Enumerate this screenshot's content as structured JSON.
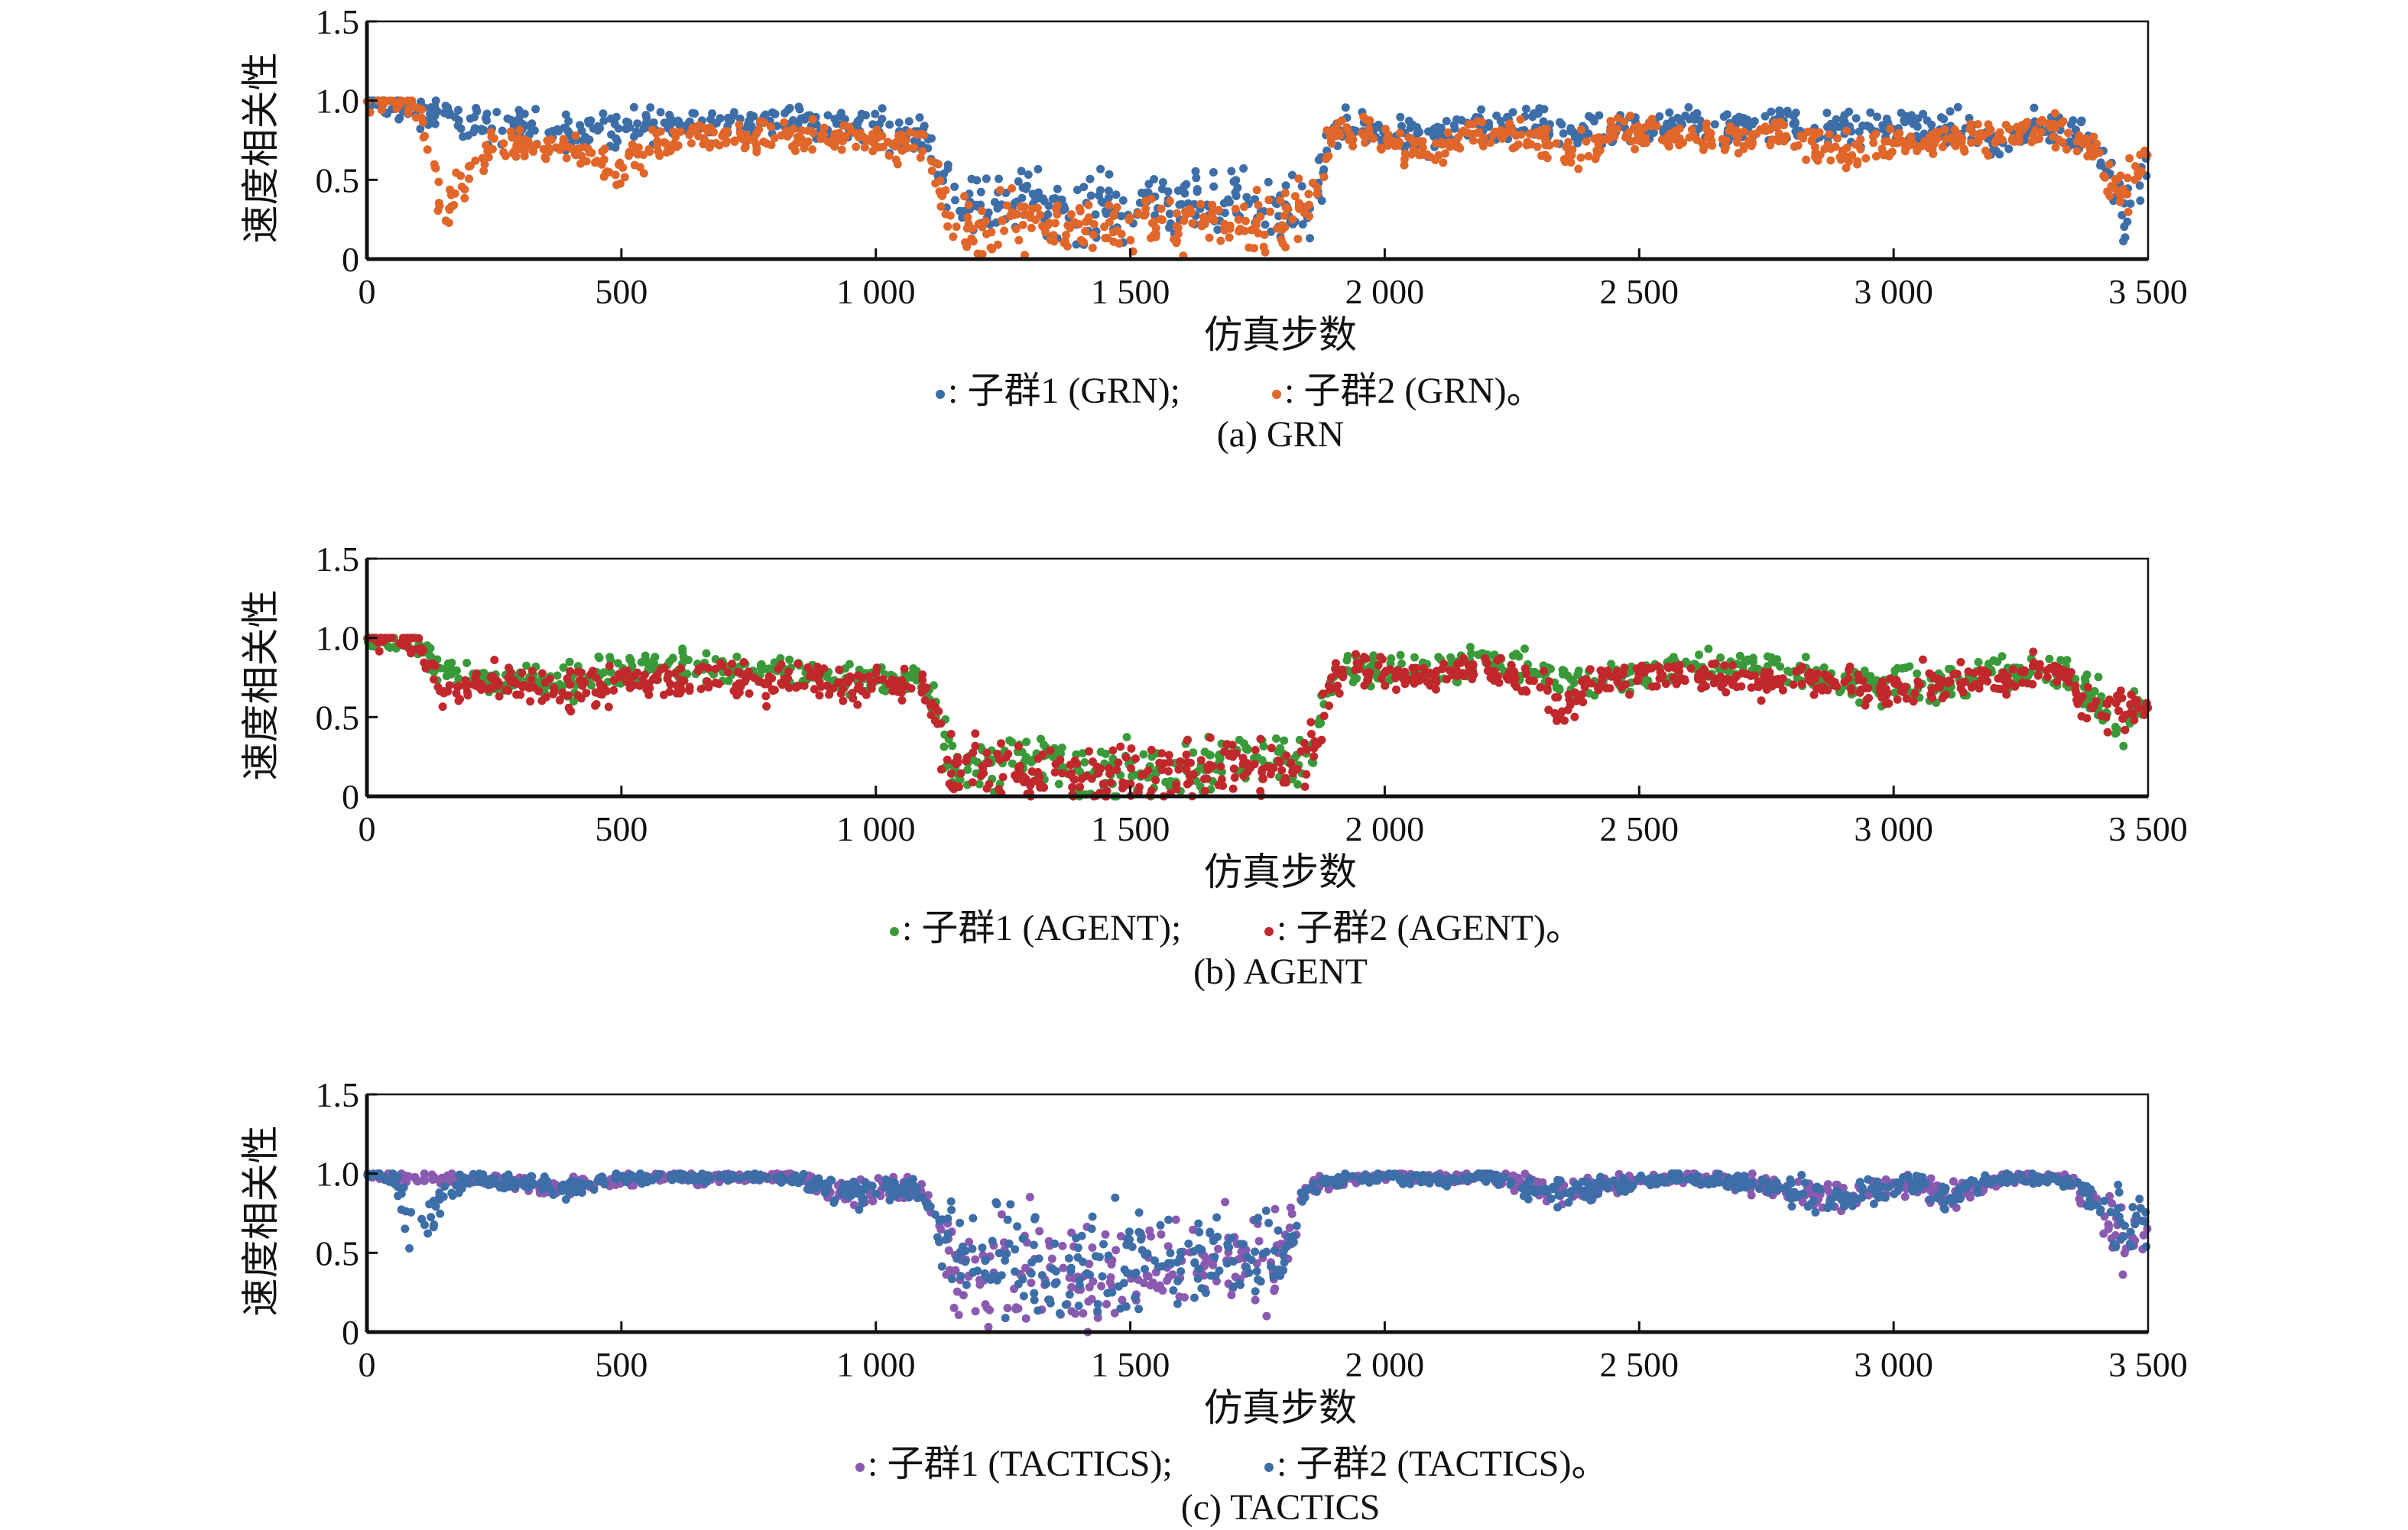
{
  "chart_data": [
    {
      "type": "scatter",
      "id": "grn",
      "caption": "(a) GRN",
      "xlabel": "仿真步数",
      "ylabel": "速度相关性",
      "xlim": [
        0,
        3500
      ],
      "ylim": [
        0,
        1.5
      ],
      "x_ticks": [
        0,
        500,
        1000,
        1500,
        2000,
        2500,
        3000,
        3500
      ],
      "x_tick_labels": [
        "0",
        "500",
        "1 000",
        "1 500",
        "2 000",
        "2 500",
        "3 000",
        "3 500"
      ],
      "y_ticks": [
        0,
        0.5,
        1.0,
        1.5
      ],
      "y_tick_labels": [
        "0",
        "0.5",
        "1.0",
        "1.5"
      ],
      "grid": false,
      "legend_placement": "bottom-center",
      "x_step": 50,
      "series": [
        {
          "name": "子群1 (GRN);",
          "legend_prefix": ": ",
          "color": "#3d6ea8",
          "spread": [
            0.07,
            0.15
          ],
          "values": [
            1.0,
            0.95,
            0.93,
            0.9,
            0.85,
            0.83,
            0.85,
            0.82,
            0.8,
            0.82,
            0.8,
            0.85,
            0.85,
            0.85,
            0.87,
            0.86,
            0.87,
            0.86,
            0.85,
            0.85,
            0.83,
            0.8,
            0.78,
            0.45,
            0.3,
            0.35,
            0.4,
            0.35,
            0.3,
            0.35,
            0.3,
            0.4,
            0.35,
            0.3,
            0.4,
            0.35,
            0.35,
            0.25,
            0.8,
            0.82,
            0.8,
            0.78,
            0.75,
            0.8,
            0.82,
            0.85,
            0.83,
            0.8,
            0.8,
            0.78,
            0.82,
            0.85,
            0.85,
            0.82,
            0.83,
            0.85,
            0.85,
            0.82,
            0.8,
            0.83,
            0.85,
            0.85,
            0.8,
            0.82,
            0.7,
            0.8,
            0.82,
            0.8,
            0.75,
            0.3,
            0.6
          ]
        },
        {
          "name": "子群2 (GRN)。",
          "legend_prefix": ": ",
          "color": "#e0662a",
          "spread": [
            0.06,
            0.12
          ],
          "values": [
            1.0,
            1.0,
            0.95,
            0.3,
            0.55,
            0.72,
            0.75,
            0.7,
            0.72,
            0.65,
            0.55,
            0.68,
            0.75,
            0.78,
            0.75,
            0.77,
            0.78,
            0.76,
            0.78,
            0.77,
            0.75,
            0.72,
            0.72,
            0.2,
            0.15,
            0.25,
            0.25,
            0.2,
            0.22,
            0.25,
            0.2,
            0.25,
            0.22,
            0.2,
            0.2,
            0.22,
            0.25,
            0.35,
            0.8,
            0.8,
            0.72,
            0.68,
            0.7,
            0.78,
            0.8,
            0.78,
            0.75,
            0.7,
            0.72,
            0.8,
            0.8,
            0.78,
            0.8,
            0.78,
            0.75,
            0.8,
            0.78,
            0.72,
            0.7,
            0.65,
            0.75,
            0.72,
            0.75,
            0.72,
            0.78,
            0.8,
            0.8,
            0.78,
            0.65,
            0.4,
            0.7
          ]
        }
      ]
    },
    {
      "type": "scatter",
      "id": "agent",
      "caption": "(b) AGENT",
      "xlabel": "仿真步数",
      "ylabel": "速度相关性",
      "xlim": [
        0,
        3500
      ],
      "ylim": [
        0,
        1.5
      ],
      "x_ticks": [
        0,
        500,
        1000,
        1500,
        2000,
        2500,
        3000,
        3500
      ],
      "x_tick_labels": [
        "0",
        "500",
        "1 000",
        "1 500",
        "2 000",
        "2 500",
        "3 000",
        "3 500"
      ],
      "y_ticks": [
        0,
        0.5,
        1.0,
        1.5
      ],
      "y_tick_labels": [
        "0",
        "0.5",
        "1.0",
        "1.5"
      ],
      "grid": false,
      "legend_placement": "bottom-center",
      "x_step": 50,
      "series": [
        {
          "name": "子群1 (AGENT);",
          "legend_prefix": ": ",
          "color": "#3a9a3a",
          "spread": [
            0.06,
            0.12
          ],
          "values": [
            1.0,
            0.98,
            0.95,
            0.78,
            0.75,
            0.72,
            0.75,
            0.73,
            0.72,
            0.78,
            0.8,
            0.82,
            0.85,
            0.8,
            0.8,
            0.78,
            0.8,
            0.78,
            0.76,
            0.75,
            0.72,
            0.75,
            0.72,
            0.2,
            0.2,
            0.25,
            0.22,
            0.2,
            0.15,
            0.12,
            0.15,
            0.15,
            0.18,
            0.2,
            0.22,
            0.2,
            0.25,
            0.2,
            0.8,
            0.82,
            0.8,
            0.78,
            0.8,
            0.82,
            0.85,
            0.82,
            0.8,
            0.72,
            0.7,
            0.75,
            0.78,
            0.8,
            0.82,
            0.8,
            0.8,
            0.82,
            0.78,
            0.75,
            0.72,
            0.7,
            0.72,
            0.7,
            0.72,
            0.75,
            0.8,
            0.78,
            0.8,
            0.75,
            0.6,
            0.4,
            0.62
          ]
        },
        {
          "name": "子群2 (AGENT)。",
          "legend_prefix": ": ",
          "color": "#c0282c",
          "spread": [
            0.06,
            0.12
          ],
          "values": [
            1.0,
            1.0,
            0.98,
            0.65,
            0.7,
            0.72,
            0.72,
            0.7,
            0.68,
            0.68,
            0.72,
            0.72,
            0.72,
            0.72,
            0.75,
            0.72,
            0.72,
            0.75,
            0.72,
            0.7,
            0.7,
            0.7,
            0.7,
            0.15,
            0.15,
            0.18,
            0.15,
            0.15,
            0.12,
            0.1,
            0.12,
            0.12,
            0.15,
            0.18,
            0.2,
            0.18,
            0.2,
            0.2,
            0.75,
            0.78,
            0.75,
            0.75,
            0.78,
            0.8,
            0.82,
            0.78,
            0.72,
            0.5,
            0.72,
            0.75,
            0.78,
            0.78,
            0.78,
            0.75,
            0.72,
            0.72,
            0.75,
            0.72,
            0.72,
            0.68,
            0.68,
            0.7,
            0.72,
            0.72,
            0.75,
            0.75,
            0.78,
            0.72,
            0.5,
            0.55,
            0.65
          ]
        }
      ]
    },
    {
      "type": "scatter",
      "id": "tactics",
      "caption": "(c) TACTICS",
      "xlabel": "仿真步数",
      "ylabel": "速度相关性",
      "xlim": [
        0,
        3500
      ],
      "ylim": [
        0,
        1.5
      ],
      "x_ticks": [
        0,
        500,
        1000,
        1500,
        2000,
        2500,
        3000,
        3500
      ],
      "x_tick_labels": [
        "0",
        "500",
        "1 000",
        "1 500",
        "2 000",
        "2 500",
        "3 000",
        "3 500"
      ],
      "y_ticks": [
        0,
        0.5,
        1.0,
        1.5
      ],
      "y_tick_labels": [
        "0",
        "0.5",
        "1.0",
        "1.5"
      ],
      "grid": false,
      "legend_placement": "bottom-center",
      "x_step": 50,
      "series": [
        {
          "name": "子群1 (TACTICS);",
          "legend_prefix": ": ",
          "color": "#8a5ab0",
          "spread": [
            0.02,
            0.45
          ],
          "values": [
            1.0,
            0.97,
            0.98,
            0.97,
            0.97,
            0.96,
            0.95,
            0.92,
            0.9,
            0.95,
            0.97,
            0.97,
            0.98,
            0.97,
            0.98,
            0.98,
            0.98,
            0.97,
            0.9,
            0.88,
            0.9,
            0.9,
            0.88,
            0.45,
            0.4,
            0.45,
            0.4,
            0.4,
            0.4,
            0.35,
            0.4,
            0.4,
            0.45,
            0.45,
            0.5,
            0.45,
            0.5,
            0.9,
            0.95,
            0.97,
            0.98,
            0.97,
            0.96,
            0.97,
            0.98,
            0.95,
            0.92,
            0.88,
            0.9,
            0.92,
            0.95,
            0.97,
            0.97,
            0.96,
            0.95,
            0.92,
            0.9,
            0.88,
            0.85,
            0.9,
            0.92,
            0.93,
            0.85,
            0.9,
            0.95,
            0.97,
            0.97,
            0.95,
            0.75,
            0.6,
            0.6
          ]
        },
        {
          "name": "子群2 (TACTICS)。",
          "legend_prefix": ": ",
          "color": "#3d6ea8",
          "spread": [
            0.02,
            0.45
          ],
          "values": [
            1.0,
            0.98,
            0.6,
            0.85,
            0.97,
            0.96,
            0.95,
            0.93,
            0.9,
            0.95,
            0.97,
            0.97,
            0.98,
            0.97,
            0.98,
            0.98,
            0.98,
            0.97,
            0.92,
            0.88,
            0.9,
            0.9,
            0.88,
            0.5,
            0.45,
            0.45,
            0.4,
            0.45,
            0.45,
            0.4,
            0.45,
            0.45,
            0.45,
            0.5,
            0.5,
            0.48,
            0.5,
            0.92,
            0.95,
            0.97,
            0.98,
            0.97,
            0.96,
            0.97,
            0.98,
            0.95,
            0.9,
            0.88,
            0.9,
            0.92,
            0.95,
            0.97,
            0.97,
            0.96,
            0.95,
            0.92,
            0.88,
            0.85,
            0.85,
            0.88,
            0.92,
            0.93,
            0.85,
            0.92,
            0.95,
            0.97,
            0.97,
            0.95,
            0.8,
            0.7,
            0.7
          ]
        }
      ]
    }
  ]
}
